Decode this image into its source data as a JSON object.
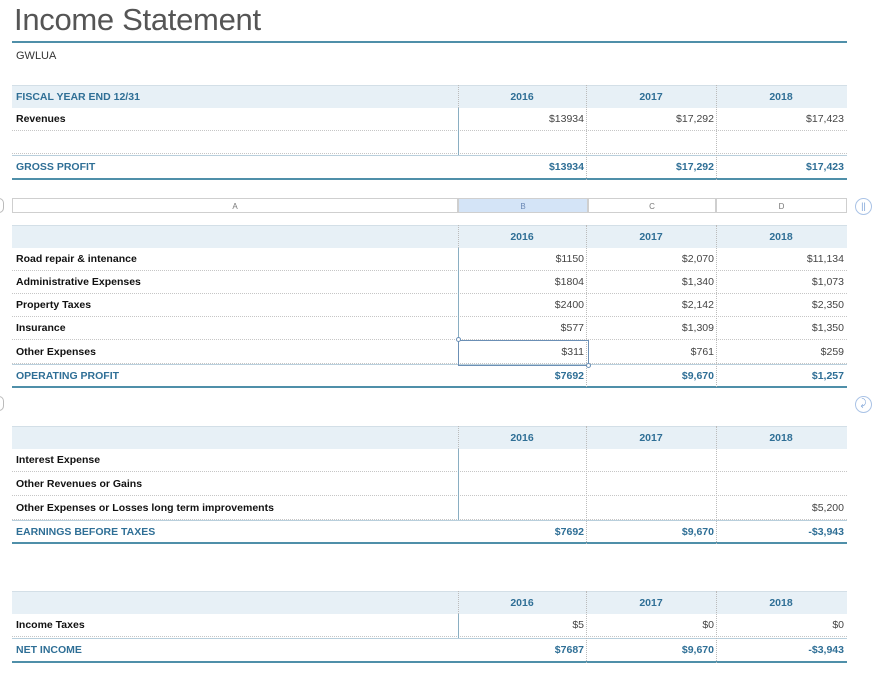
{
  "title": "Income Statement",
  "subtitle": "GWLUA",
  "column_headers": [
    "A",
    "B",
    "C",
    "D"
  ],
  "table1": {
    "header_label": "FISCAL YEAR END 12/31",
    "years": [
      "2016",
      "2017",
      "2018"
    ],
    "rows": [
      {
        "label": "Revenues",
        "v": [
          "$13934",
          "$17,292",
          "$17,423"
        ]
      }
    ],
    "total": {
      "label": "GROSS PROFIT",
      "v": [
        "$13934",
        "$17,292",
        "$17,423"
      ]
    }
  },
  "table2": {
    "years": [
      "2016",
      "2017",
      "2018"
    ],
    "rows": [
      {
        "label": "Road repair & intenance",
        "v": [
          "$1150",
          "$2,070",
          "$11,134"
        ]
      },
      {
        "label": "Administrative Expenses",
        "v": [
          "$1804",
          "$1,340",
          "$1,073"
        ]
      },
      {
        "label": "Property Taxes",
        "v": [
          "$2400",
          "$2,142",
          "$2,350"
        ]
      },
      {
        "label": "Insurance",
        "v": [
          "$577",
          "$1,309",
          "$1,350"
        ]
      },
      {
        "label": "Other Expenses",
        "v": [
          "$311",
          "$761",
          "$259"
        ]
      }
    ],
    "total": {
      "label": "OPERATING PROFIT",
      "v": [
        "$7692",
        "$9,670",
        "$1,257"
      ]
    }
  },
  "table3": {
    "years": [
      "2016",
      "2017",
      "2018"
    ],
    "rows": [
      {
        "label": "Interest Expense",
        "v": [
          "",
          "",
          ""
        ]
      },
      {
        "label": "Other Revenues or Gains",
        "v": [
          "",
          "",
          ""
        ]
      },
      {
        "label": "Other Expenses or Losses  long term improvements",
        "v": [
          "",
          "",
          "$5,200"
        ]
      }
    ],
    "total": {
      "label": "EARNINGS BEFORE TAXES",
      "v": [
        "$7692",
        "$9,670",
        "-$3,943"
      ]
    }
  },
  "table4": {
    "years": [
      "2016",
      "2017",
      "2018"
    ],
    "rows": [
      {
        "label": "Income Taxes",
        "v": [
          "$5",
          "$0",
          "$0"
        ]
      }
    ],
    "total": {
      "label": "NET INCOME",
      "v": [
        "$7687",
        "$9,670",
        "-$3,943"
      ]
    }
  },
  "accent_color": "#2f6f96",
  "header_bg": "#e7f0f6"
}
